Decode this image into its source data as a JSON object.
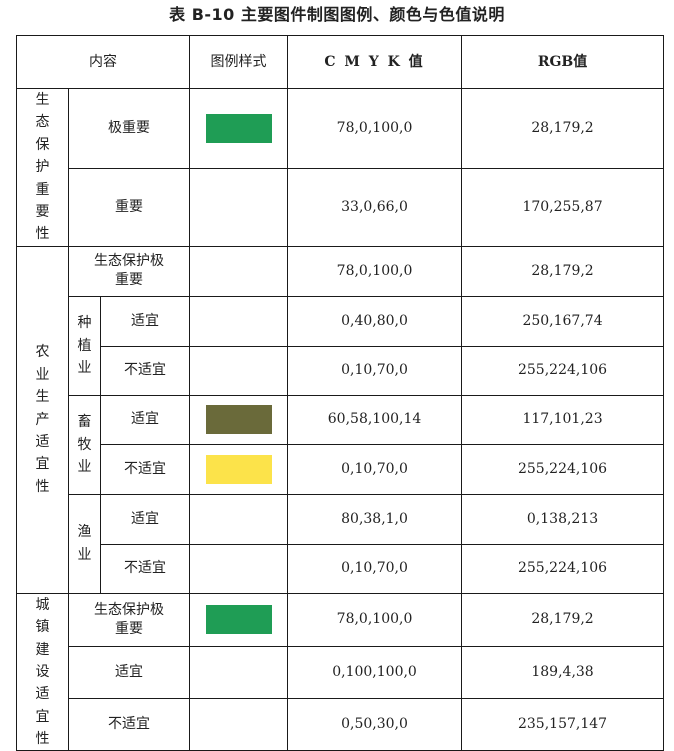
{
  "title": "表 B-10 主要图件制图图例、颜色与色值说明",
  "header": {
    "content": "内容",
    "style": "图例样式",
    "cmyk": "C M Y K 值",
    "rgb": "RGB值"
  },
  "groups": {
    "eco": "生态保护重要性",
    "agri": "农业生产适宜性",
    "urban": "城镇建设适宜性",
    "planting": "种植业",
    "livestock": "畜牧业",
    "fishery": "渔业"
  },
  "rows": [
    {
      "label": "极重要",
      "cmyk": "78,0,100,0",
      "rgb": "28,179,2",
      "swatch": "#1f9d55"
    },
    {
      "label": "重要",
      "cmyk": "33,0,66,0",
      "rgb": "170,255,87",
      "swatch": ""
    },
    {
      "label": "生态保护极重要",
      "cmyk": "78,0,100,0",
      "rgb": "28,179,2",
      "swatch": ""
    },
    {
      "label": "适宜",
      "cmyk": "0,40,80,0",
      "rgb": "250,167,74",
      "swatch": ""
    },
    {
      "label": "不适宜",
      "cmyk": "0,10,70,0",
      "rgb": "255,224,106",
      "swatch": ""
    },
    {
      "label": "适宜",
      "cmyk": "60,58,100,14",
      "rgb": "117,101,23",
      "swatch": "#6a6a3a"
    },
    {
      "label": "不适宜",
      "cmyk": "0,10,70,0",
      "rgb": "255,224,106",
      "swatch": "#fce34a"
    },
    {
      "label": "适宜",
      "cmyk": "80,38,1,0",
      "rgb": "0,138,213",
      "swatch": ""
    },
    {
      "label": "不适宜",
      "cmyk": "0,10,70,0",
      "rgb": "255,224,106",
      "swatch": ""
    },
    {
      "label": "生态保护极重要",
      "cmyk": "78,0,100,0",
      "rgb": "28,179,2",
      "swatch": "#1f9d55"
    },
    {
      "label": "适宜",
      "cmyk": "0,100,100,0",
      "rgb": "189,4,38",
      "swatch": ""
    },
    {
      "label": "不适宜",
      "cmyk": "0,50,30,0",
      "rgb": "235,157,147",
      "swatch": ""
    }
  ]
}
